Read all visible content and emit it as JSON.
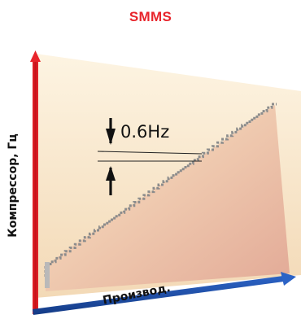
{
  "title": "SMMS",
  "y_axis_label": "Компрессор, Гц",
  "x_axis_label": "Производ.",
  "step_label": "0.6Hz",
  "colors": {
    "title": "#e8242b",
    "y_axis": "#e8242b",
    "x_axis": "#1f4fa8",
    "area_top": "#fdf4e2",
    "area_bottom": "#e4ad98",
    "staircase": "#8c8c8c"
  },
  "icons": [
    "dimension-arrow-down-icon",
    "dimension-arrow-up-icon"
  ]
}
